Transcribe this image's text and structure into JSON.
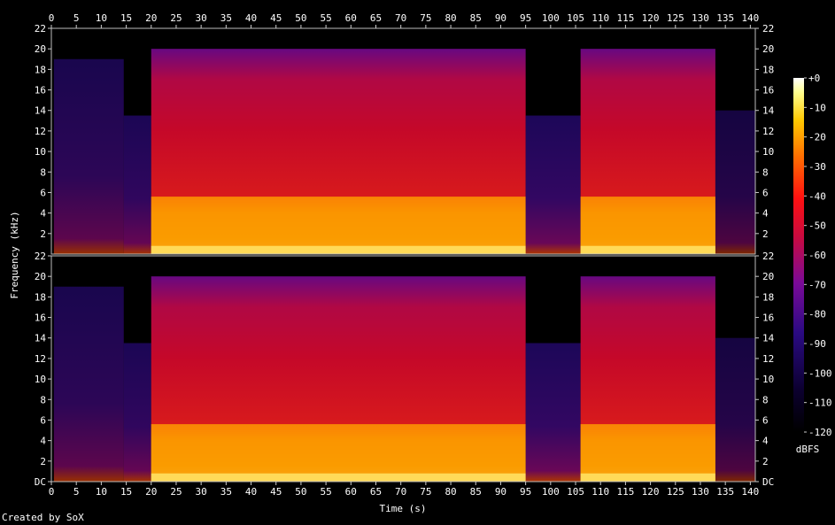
{
  "chart_data": {
    "type": "heatmap",
    "title": "",
    "xlabel": "Time (s)",
    "ylabel": "Frequency (kHz)",
    "x_ticks": [
      0,
      5,
      10,
      15,
      20,
      25,
      30,
      35,
      40,
      45,
      50,
      55,
      60,
      65,
      70,
      75,
      80,
      85,
      90,
      95,
      100,
      105,
      110,
      115,
      120,
      125,
      130,
      135,
      140
    ],
    "xlim": [
      0,
      141
    ],
    "y_ticks_top": [
      "22",
      "20",
      "18",
      "16",
      "14",
      "12",
      "10",
      "8",
      "6",
      "4",
      "2"
    ],
    "y_ticks_bottom": [
      "22",
      "20",
      "18",
      "16",
      "14",
      "12",
      "10",
      "8",
      "6",
      "4",
      "2",
      "DC"
    ],
    "ylim_khz": [
      0,
      22
    ],
    "channels": 2,
    "colorbar": {
      "label": "dBFS",
      "ticks": [
        "+0",
        "-10",
        "-20",
        "-30",
        "-40",
        "-50",
        "-60",
        "-70",
        "-80",
        "-90",
        "-100",
        "-110",
        "-120"
      ],
      "range": [
        -120,
        0
      ]
    },
    "segments": [
      {
        "start": 0.5,
        "end": 14.5,
        "max_khz": 19,
        "level": 0.3
      },
      {
        "start": 14.5,
        "end": 20,
        "max_khz": 13.5,
        "level": 0.35
      },
      {
        "start": 20,
        "end": 95,
        "max_khz": 20,
        "level": 0.55
      },
      {
        "start": 95,
        "end": 106,
        "max_khz": 13.5,
        "level": 0.38
      },
      {
        "start": 106,
        "end": 133,
        "max_khz": 20,
        "level": 0.55
      },
      {
        "start": 133,
        "end": 141,
        "max_khz": 14,
        "level": 0.2
      }
    ]
  },
  "footer": {
    "credit": "Created by SoX"
  }
}
